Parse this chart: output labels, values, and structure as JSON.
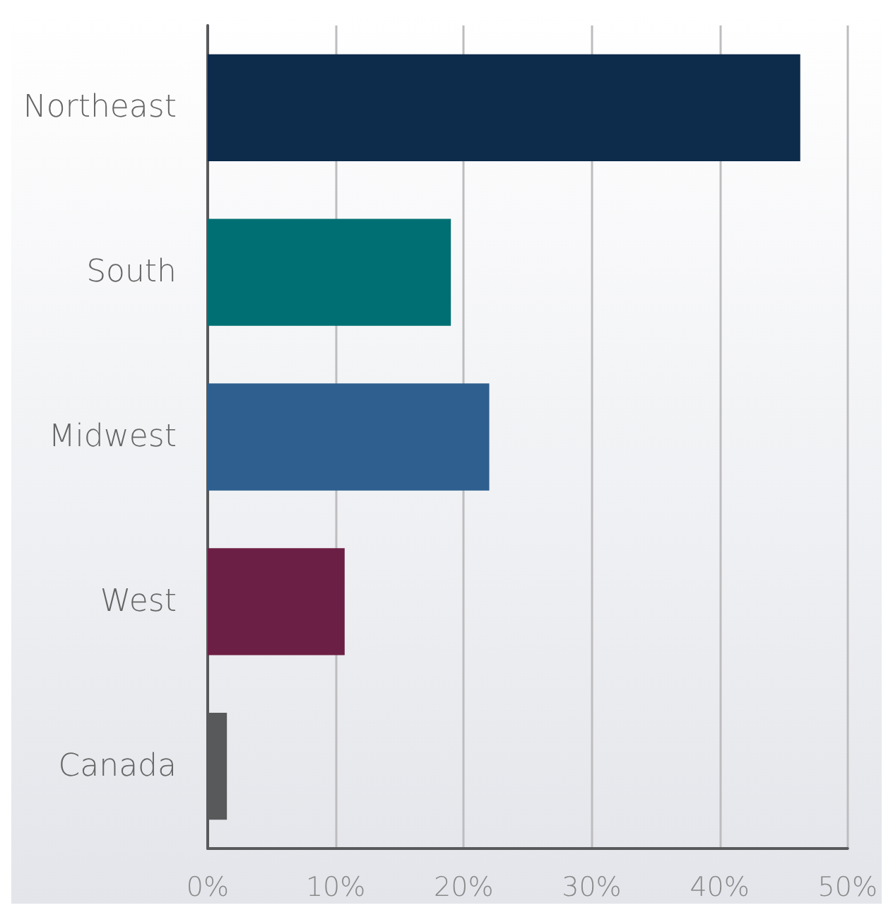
{
  "chart_data": {
    "type": "bar",
    "orientation": "horizontal",
    "categories": [
      "Northeast",
      "South",
      "Midwest",
      "West",
      "Canada"
    ],
    "values": [
      46.3,
      19,
      22,
      10.7,
      1.5
    ],
    "colors": [
      "#0d2b4b",
      "#006f73",
      "#2e5f8f",
      "#6c1f44",
      "#58595b"
    ],
    "xlim": [
      0,
      50
    ],
    "xticks": [
      {
        "value": 0,
        "label": "0%"
      },
      {
        "value": 10,
        "label": "10%"
      },
      {
        "value": 20,
        "label": "20%"
      },
      {
        "value": 30,
        "label": "30%"
      },
      {
        "value": 40,
        "label": "40%"
      },
      {
        "value": 50,
        "label": "50%"
      }
    ],
    "grid": "x"
  }
}
